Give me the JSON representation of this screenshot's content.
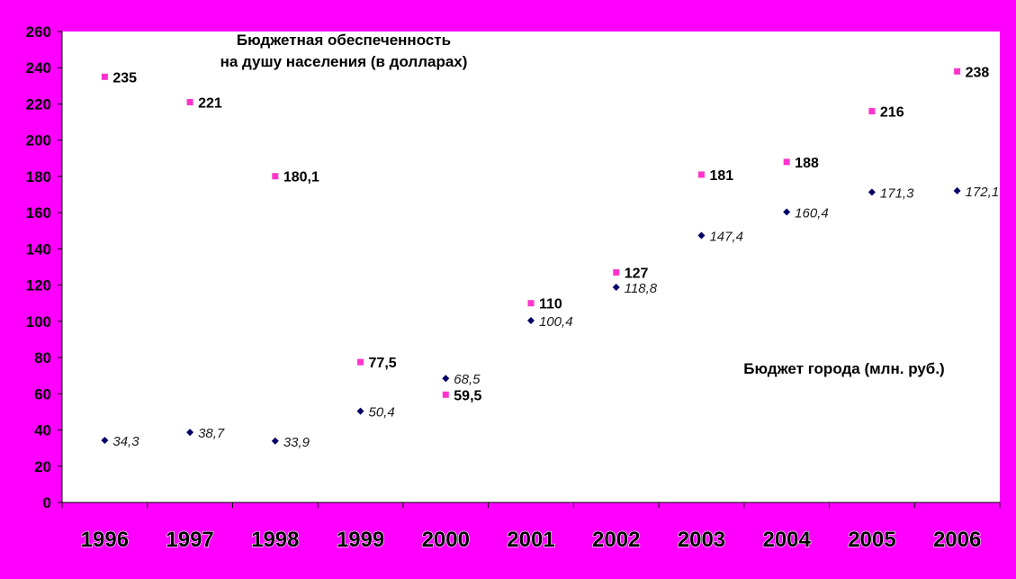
{
  "colors": {
    "frame": "#ff00ff",
    "plot_bg": "#ffffff",
    "per_capita_marker": "#ff33cc",
    "budget_marker": "#000066",
    "axis": "#000000"
  },
  "chart_data": {
    "type": "scatter",
    "categories": [
      "1996",
      "1997",
      "1998",
      "1999",
      "2000",
      "2001",
      "2002",
      "2003",
      "2004",
      "2005",
      "2006"
    ],
    "ylim": [
      0,
      260
    ],
    "yticks": [
      0,
      20,
      40,
      60,
      80,
      100,
      120,
      140,
      160,
      180,
      200,
      220,
      240,
      260
    ],
    "grid": false,
    "series": [
      {
        "marker": "square",
        "color": "#ff33cc",
        "values": [
          235,
          221,
          180.1,
          77.5,
          59.5,
          110,
          127,
          181,
          188,
          216,
          238
        ],
        "labels": [
          "235",
          "221",
          "180,1",
          "77,5",
          "59,5",
          "110",
          "127",
          "181",
          "188",
          "216",
          "238"
        ],
        "label_style": "bold"
      },
      {
        "marker": "diamond",
        "color": "#000066",
        "values": [
          34.3,
          38.7,
          33.9,
          50.4,
          68.5,
          100.4,
          118.8,
          147.4,
          160.4,
          171.3,
          172.1
        ],
        "labels": [
          "34,3",
          "38,7",
          "33,9",
          "50,4",
          "68,5",
          "100,4",
          "118,8",
          "147,4",
          "160,4",
          "171,3",
          "172,1"
        ],
        "label_style": "italic"
      }
    ],
    "annotations": [
      {
        "lines": [
          "Бюджетная обеспеченность",
          "на душу населения (в долларах)"
        ]
      },
      {
        "lines": [
          "Бюджет города (млн. руб.)"
        ]
      }
    ]
  }
}
